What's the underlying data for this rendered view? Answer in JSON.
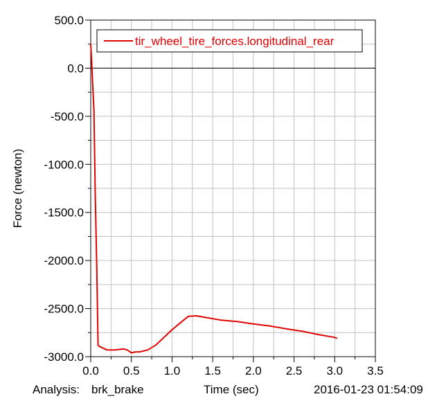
{
  "footer": {
    "analysis_label": "Analysis:",
    "analysis_name": "brk_brake",
    "timestamp": "2016-01-23 01:54:09"
  },
  "chart_data": {
    "type": "line",
    "xlabel": "Time (sec)",
    "ylabel": "Force (newton)",
    "xlim": [
      0.0,
      3.5
    ],
    "ylim": [
      -3000.0,
      500.0
    ],
    "x_ticks": [
      "0.0",
      "0.5",
      "1.0",
      "1.5",
      "2.0",
      "2.5",
      "3.0",
      "3.5"
    ],
    "y_ticks": [
      "500.0",
      "0.0",
      "-500.0",
      "-1000.0",
      "-1500.0",
      "-2000.0",
      "-2500.0",
      "-3000.0"
    ],
    "grid": true,
    "legend_position": "top",
    "series": [
      {
        "name": "tir_wheel_tire_forces.longitudinal_rear",
        "color": "#e00000",
        "x": [
          0.0,
          0.01,
          0.025,
          0.04,
          0.055,
          0.075,
          0.09,
          0.1,
          0.2,
          0.3,
          0.4,
          0.45,
          0.5,
          0.55,
          0.6,
          0.7,
          0.8,
          1.0,
          1.2,
          1.3,
          1.4,
          1.6,
          1.8,
          2.0,
          2.2,
          2.4,
          2.6,
          2.8,
          3.0,
          3.03
        ],
        "y": [
          250,
          100,
          -180,
          -450,
          -1300,
          -2100,
          -2880,
          -2890,
          -2930,
          -2930,
          -2920,
          -2930,
          -2960,
          -2950,
          -2950,
          -2930,
          -2880,
          -2720,
          -2580,
          -2575,
          -2590,
          -2620,
          -2635,
          -2660,
          -2680,
          -2710,
          -2735,
          -2770,
          -2800,
          -2810
        ]
      }
    ]
  }
}
